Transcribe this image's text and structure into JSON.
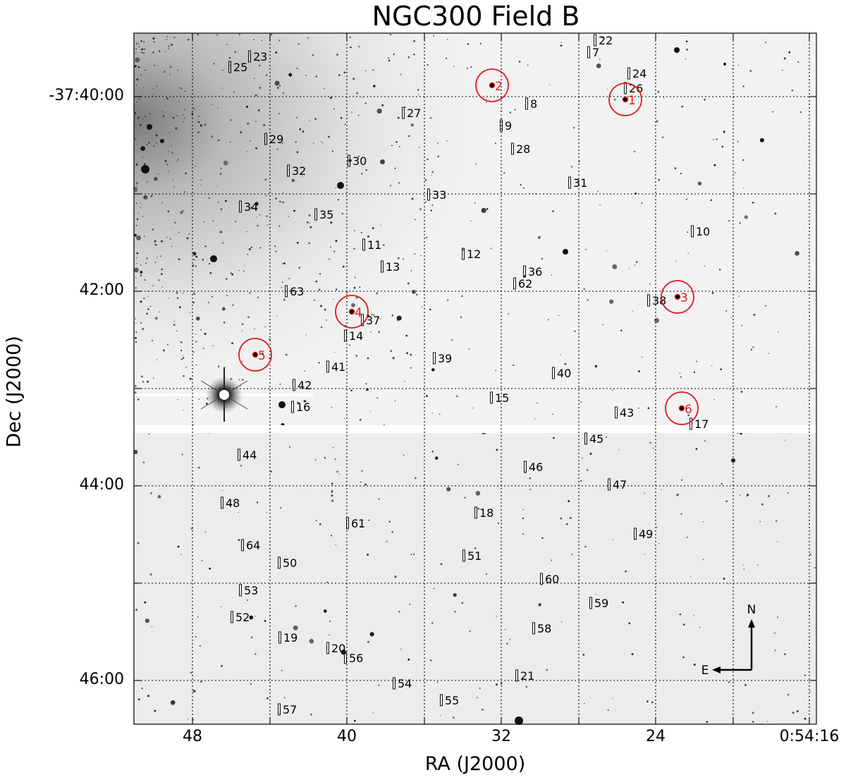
{
  "title": "NGC300 Field B",
  "x_axis_label": "RA (J2000)",
  "y_axis_label": "Dec (J2000)",
  "x_ticks": [
    "48",
    "40",
    "32",
    "24",
    "0:54:16"
  ],
  "y_ticks": [
    "-37:40:00",
    "42:00",
    "44:00",
    "46:00"
  ],
  "compass": {
    "north": "N",
    "east": "E"
  },
  "circled_targets": [
    "1",
    "2",
    "3",
    "4",
    "5",
    "6"
  ],
  "slit_labels": [
    "7",
    "8",
    "9",
    "10",
    "11",
    "12",
    "13",
    "14",
    "15",
    "16",
    "17",
    "18",
    "19",
    "20",
    "21",
    "22",
    "23",
    "24",
    "25",
    "26",
    "27",
    "28",
    "29",
    "30",
    "31",
    "32",
    "33",
    "34",
    "35",
    "36",
    "37",
    "38",
    "39",
    "40",
    "41",
    "42",
    "43",
    "44",
    "45",
    "46",
    "47",
    "48",
    "49",
    "50",
    "51",
    "52",
    "53",
    "54",
    "55",
    "56",
    "57",
    "58",
    "59",
    "60",
    "61",
    "62",
    "63",
    "64"
  ],
  "colors": {
    "circle": "#e31a1c",
    "grid": "#000000",
    "background": "#f2f2f2"
  }
}
